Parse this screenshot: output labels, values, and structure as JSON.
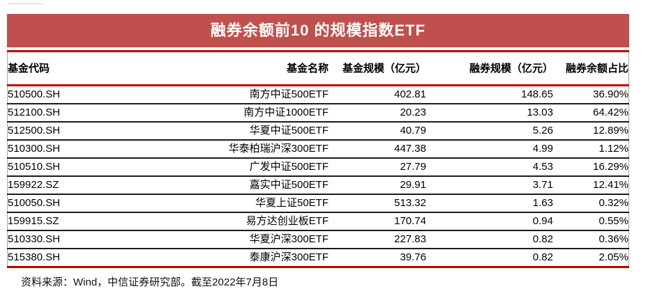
{
  "title": "融券余额前10 的规模指数ETF",
  "table": {
    "columns": {
      "code": "基金代码",
      "name": "基金名称",
      "fund_scale": "基金规模（亿元）",
      "short_scale": "融券规模（亿元）",
      "ratio": "融券余额占比"
    },
    "rows": [
      {
        "code": "510500.SH",
        "name": "南方中证500ETF",
        "fund_scale": "402.81",
        "short_scale": "148.65",
        "ratio": "36.90%"
      },
      {
        "code": "512100.SH",
        "name": "南方中证1000ETF",
        "fund_scale": "20.23",
        "short_scale": "13.03",
        "ratio": "64.42%"
      },
      {
        "code": "512500.SH",
        "name": "华夏中证500ETF",
        "fund_scale": "40.79",
        "short_scale": "5.26",
        "ratio": "12.89%"
      },
      {
        "code": "510300.SH",
        "name": "华泰柏瑞沪深300ETF",
        "fund_scale": "447.38",
        "short_scale": "4.99",
        "ratio": "1.12%"
      },
      {
        "code": "510510.SH",
        "name": "广发中证500ETF",
        "fund_scale": "27.79",
        "short_scale": "4.53",
        "ratio": "16.29%"
      },
      {
        "code": "159922.SZ",
        "name": "嘉实中证500ETF",
        "fund_scale": "29.91",
        "short_scale": "3.71",
        "ratio": "12.41%"
      },
      {
        "code": "510050.SH",
        "name": "华夏上证50ETF",
        "fund_scale": "513.32",
        "short_scale": "1.63",
        "ratio": "0.32%"
      },
      {
        "code": "159915.SZ",
        "name": "易方达创业板ETF",
        "fund_scale": "170.74",
        "short_scale": "0.94",
        "ratio": "0.55%"
      },
      {
        "code": "510330.SH",
        "name": "华夏沪深300ETF",
        "fund_scale": "227.83",
        "short_scale": "0.82",
        "ratio": "0.36%"
      },
      {
        "code": "515380.SH",
        "name": "泰康沪深300ETF",
        "fund_scale": "39.76",
        "short_scale": "0.82",
        "ratio": "2.05%"
      }
    ]
  },
  "footer": "资料来源：Wind，中信证券研究部。截至2022年7月8日",
  "colors": {
    "title_bar": "#C0504D",
    "rule_red": "#C00000",
    "row_separator": "#1A1A1A",
    "side_border": "#A6A6A6",
    "title_text": "#FFFFFF",
    "body_text": "#000000"
  },
  "chart_data": {
    "type": "table",
    "title": "融券余额前10 的规模指数ETF",
    "columns": [
      "基金代码",
      "基金名称",
      "基金规模（亿元）",
      "融券规模（亿元）",
      "融券余额占比"
    ],
    "rows": [
      [
        "510500.SH",
        "南方中证500ETF",
        402.81,
        148.65,
        "36.90%"
      ],
      [
        "512100.SH",
        "南方中证1000ETF",
        20.23,
        13.03,
        "64.42%"
      ],
      [
        "512500.SH",
        "华夏中证500ETF",
        40.79,
        5.26,
        "12.89%"
      ],
      [
        "510300.SH",
        "华泰柏瑞沪深300ETF",
        447.38,
        4.99,
        "1.12%"
      ],
      [
        "510510.SH",
        "广发中证500ETF",
        27.79,
        4.53,
        "16.29%"
      ],
      [
        "159922.SZ",
        "嘉实中证500ETF",
        29.91,
        3.71,
        "12.41%"
      ],
      [
        "510050.SH",
        "华夏上证50ETF",
        513.32,
        1.63,
        "0.32%"
      ],
      [
        "159915.SZ",
        "易方达创业板ETF",
        170.74,
        0.94,
        "0.55%"
      ],
      [
        "510330.SH",
        "华夏沪深300ETF",
        227.83,
        0.82,
        "0.36%"
      ],
      [
        "515380.SH",
        "泰康沪深300ETF",
        39.76,
        0.82,
        "2.05%"
      ]
    ],
    "source_note": "资料来源：Wind，中信证券研究部。截至2022年7月8日"
  }
}
